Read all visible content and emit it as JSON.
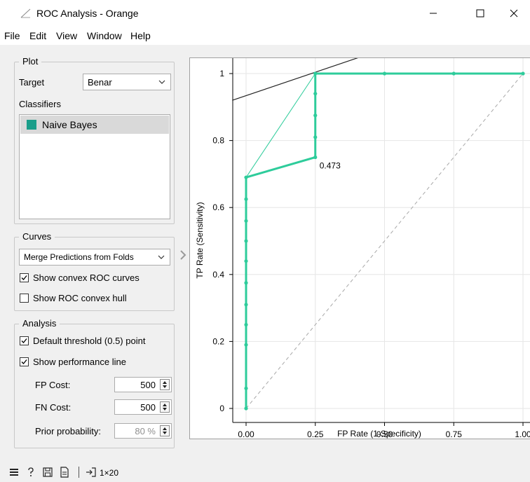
{
  "window": {
    "title": "ROC Analysis - Orange",
    "controls": [
      "minimize-icon",
      "maximize-icon",
      "close-icon"
    ]
  },
  "menu": [
    "File",
    "Edit",
    "View",
    "Window",
    "Help"
  ],
  "plot_group": {
    "title": "Plot",
    "target_label": "Target",
    "target_value": "Benar",
    "classifiers_label": "Classifiers",
    "classifiers": [
      {
        "name": "Naive Bayes",
        "color": "#1a9e8a"
      }
    ]
  },
  "curves_group": {
    "title": "Curves",
    "mode": "Merge Predictions from Folds",
    "show_convex_roc": {
      "label": "Show convex ROC curves",
      "checked": true
    },
    "show_convex_hull": {
      "label": "Show ROC convex hull",
      "checked": false
    }
  },
  "analysis_group": {
    "title": "Analysis",
    "default_threshold": {
      "label": "Default threshold (0.5) point",
      "checked": true
    },
    "performance_line": {
      "label": "Show performance line",
      "checked": true
    },
    "fp_cost": {
      "label": "FP Cost:",
      "value": "500"
    },
    "fn_cost": {
      "label": "FN Cost:",
      "value": "500"
    },
    "prior": {
      "label": "Prior probability:",
      "value": "80 %"
    }
  },
  "status": {
    "shape": "1×20"
  },
  "chart_data": {
    "type": "line",
    "xlabel": "FP Rate (1-Specificity)",
    "ylabel": "TP Rate (Sensitivity)",
    "xlim": [
      -0.05,
      1.0
    ],
    "ylim": [
      -0.05,
      1.05
    ],
    "x_ticks": [
      {
        "v": 0,
        "label": "0.00"
      },
      {
        "v": 0.25,
        "label": "0.25"
      },
      {
        "v": 0.5,
        "label": "0.50"
      },
      {
        "v": 0.75,
        "label": "0.75"
      },
      {
        "v": 1.0,
        "label": "1.00"
      }
    ],
    "y_ticks": [
      {
        "v": 0,
        "label": "0"
      },
      {
        "v": 0.2,
        "label": "0.2"
      },
      {
        "v": 0.4,
        "label": "0.4"
      },
      {
        "v": 0.6,
        "label": "0.6"
      },
      {
        "v": 0.8,
        "label": "0.8"
      },
      {
        "v": 1.0,
        "label": "1"
      }
    ],
    "grid": true,
    "roc_curve": {
      "color": "#2ecc9b",
      "points": [
        [
          0,
          0
        ],
        [
          0,
          0.06
        ],
        [
          0,
          0.19
        ],
        [
          0,
          0.25
        ],
        [
          0,
          0.31
        ],
        [
          0,
          0.375
        ],
        [
          0,
          0.44
        ],
        [
          0,
          0.5
        ],
        [
          0,
          0.56
        ],
        [
          0,
          0.625
        ],
        [
          0,
          0.69
        ],
        [
          0.25,
          0.75
        ],
        [
          0.25,
          0.81
        ],
        [
          0.25,
          0.875
        ],
        [
          0.25,
          0.94
        ],
        [
          0.25,
          1.0
        ],
        [
          0.5,
          1.0
        ],
        [
          0.75,
          1.0
        ],
        [
          1.0,
          1.0
        ]
      ]
    },
    "convex_curve": {
      "points": [
        [
          0,
          0.69
        ],
        [
          0.25,
          1.0
        ]
      ]
    },
    "diagonal": {
      "points": [
        [
          0,
          0
        ],
        [
          1,
          1
        ]
      ]
    },
    "performance_line": {
      "points": [
        [
          -0.05,
          0.92
        ],
        [
          0.45,
          1.06
        ]
      ]
    },
    "threshold_annotation": {
      "x": 0.25,
      "y": 0.75,
      "label": "0.473"
    }
  }
}
